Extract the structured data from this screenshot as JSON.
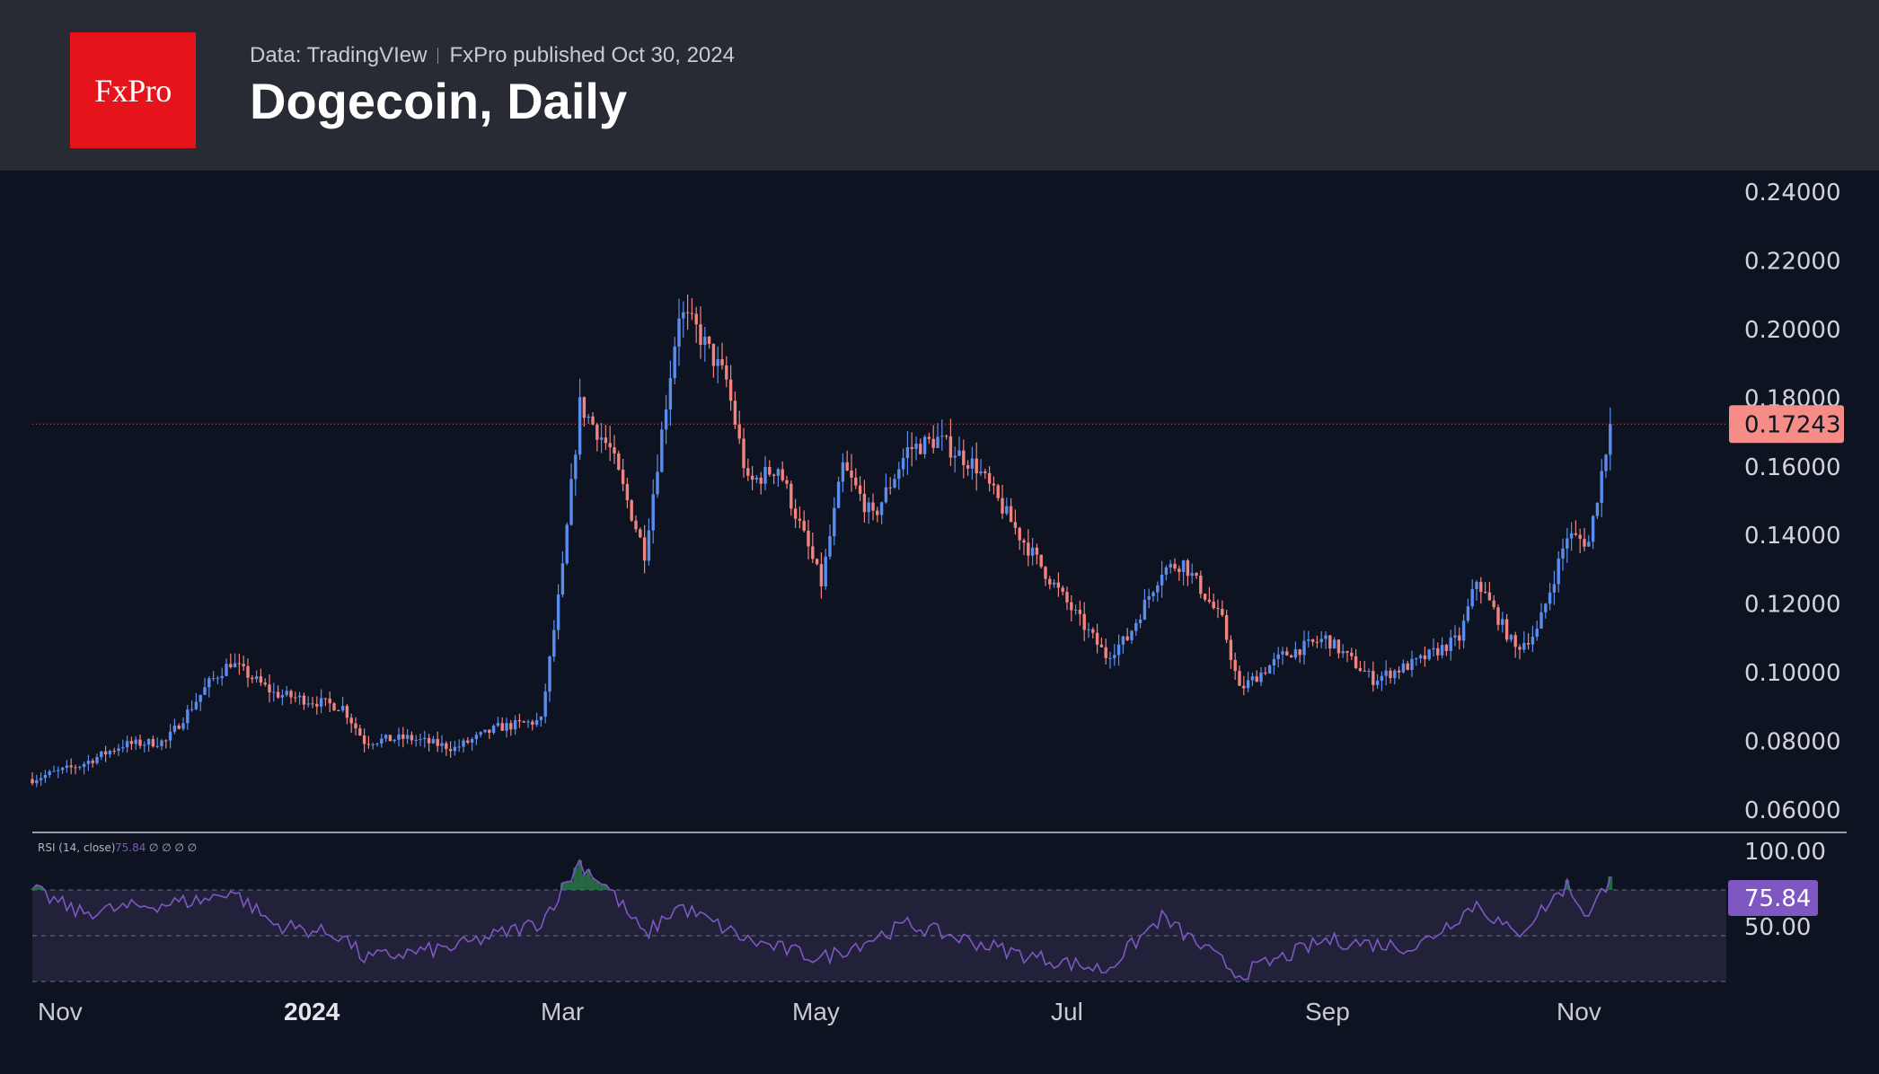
{
  "header": {
    "logo_text": "FxPro",
    "source": "Data: TradingVIew",
    "published": "FxPro published Oct 30, 2024",
    "title": "Dogecoin, Daily"
  },
  "colors": {
    "up": "#5b8def",
    "down": "#f2837e",
    "rsi_line": "#7e57c2",
    "rsi_band": "#22213a",
    "price_badge": "#f58c86",
    "rsi_badge": "#7e57c2",
    "background": "#0d1320",
    "header": "#282a34",
    "logo": "#e5141b"
  },
  "rsi": {
    "label": "RSI (14, close)",
    "value_label": "75.84",
    "placeholders": "∅ ∅ ∅ ∅",
    "ticks": [
      "100.00",
      "50.00"
    ],
    "badge": "75.84"
  },
  "chart_data": {
    "type": "candlestick",
    "title": "Dogecoin, Daily",
    "price_axis_ticks": [
      "0.24000",
      "0.22000",
      "0.20000",
      "0.18000",
      "0.16000",
      "0.14000",
      "0.12000",
      "0.10000",
      "0.08000",
      "0.06000"
    ],
    "last_price_label": "0.17243",
    "x_ticks": [
      "Nov",
      "2024",
      "Mar",
      "May",
      "Jul",
      "Sep",
      "Nov"
    ],
    "ylim": [
      0.055,
      0.245
    ],
    "price_path": [
      [
        "2023-10-30",
        0.069
      ],
      [
        "2023-11-10",
        0.073
      ],
      [
        "2023-11-20",
        0.079
      ],
      [
        "2023-11-30",
        0.08
      ],
      [
        "2023-12-10",
        0.097
      ],
      [
        "2023-12-15",
        0.103
      ],
      [
        "2023-12-25",
        0.094
      ],
      [
        "2024-01-10",
        0.09
      ],
      [
        "2024-01-15",
        0.08
      ],
      [
        "2024-01-25",
        0.081
      ],
      [
        "2024-02-05",
        0.078
      ],
      [
        "2024-02-15",
        0.084
      ],
      [
        "2024-02-25",
        0.086
      ],
      [
        "2024-03-01",
        0.13
      ],
      [
        "2024-03-05",
        0.178
      ],
      [
        "2024-03-12",
        0.165
      ],
      [
        "2024-03-20",
        0.135
      ],
      [
        "2024-03-28",
        0.205
      ],
      [
        "2024-04-01",
        0.2
      ],
      [
        "2024-04-08",
        0.185
      ],
      [
        "2024-04-13",
        0.155
      ],
      [
        "2024-04-20",
        0.16
      ],
      [
        "2024-04-30",
        0.126
      ],
      [
        "2024-05-05",
        0.16
      ],
      [
        "2024-05-12",
        0.145
      ],
      [
        "2024-05-20",
        0.165
      ],
      [
        "2024-05-27",
        0.168
      ],
      [
        "2024-06-05",
        0.16
      ],
      [
        "2024-06-15",
        0.14
      ],
      [
        "2024-06-25",
        0.122
      ],
      [
        "2024-07-05",
        0.105
      ],
      [
        "2024-07-10",
        0.11
      ],
      [
        "2024-07-18",
        0.13
      ],
      [
        "2024-07-23",
        0.132
      ],
      [
        "2024-08-01",
        0.115
      ],
      [
        "2024-08-05",
        0.095
      ],
      [
        "2024-08-15",
        0.105
      ],
      [
        "2024-08-25",
        0.11
      ],
      [
        "2024-09-05",
        0.098
      ],
      [
        "2024-09-15",
        0.103
      ],
      [
        "2024-09-25",
        0.11
      ],
      [
        "2024-09-29",
        0.127
      ],
      [
        "2024-10-08",
        0.107
      ],
      [
        "2024-10-13",
        0.112
      ],
      [
        "2024-10-20",
        0.14
      ],
      [
        "2024-10-25",
        0.138
      ],
      [
        "2024-10-30",
        0.172
      ]
    ],
    "rsi_path": [
      [
        "2023-10-30",
        70
      ],
      [
        "2023-11-10",
        60
      ],
      [
        "2023-11-20",
        62
      ],
      [
        "2023-12-10",
        66
      ],
      [
        "2023-12-15",
        70
      ],
      [
        "2023-12-25",
        55
      ],
      [
        "2024-01-10",
        50
      ],
      [
        "2024-01-15",
        40
      ],
      [
        "2024-02-05",
        45
      ],
      [
        "2024-02-25",
        56
      ],
      [
        "2024-03-05",
        82
      ],
      [
        "2024-03-12",
        70
      ],
      [
        "2024-03-20",
        50
      ],
      [
        "2024-03-28",
        63
      ],
      [
        "2024-04-13",
        48
      ],
      [
        "2024-04-30",
        40
      ],
      [
        "2024-05-20",
        55
      ],
      [
        "2024-06-15",
        42
      ],
      [
        "2024-07-05",
        35
      ],
      [
        "2024-07-18",
        58
      ],
      [
        "2024-08-05",
        33
      ],
      [
        "2024-08-25",
        48
      ],
      [
        "2024-09-15",
        45
      ],
      [
        "2024-09-29",
        64
      ],
      [
        "2024-10-08",
        50
      ],
      [
        "2024-10-20",
        72
      ],
      [
        "2024-10-25",
        58
      ],
      [
        "2024-10-30",
        75.84
      ]
    ]
  }
}
